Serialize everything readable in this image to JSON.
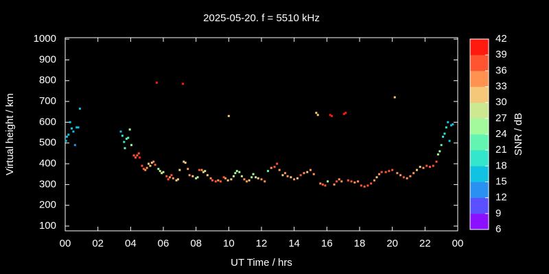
{
  "chart_data": {
    "type": "scatter",
    "title": "2025-05-20. f = 5510 kHz",
    "xlabel": "UT Time / hrs",
    "ylabel": "Virtual height / km",
    "colorbar_label": "SNR / dB",
    "xlim": [
      0,
      24
    ],
    "xticks": [
      {
        "value": 0,
        "label": "00"
      },
      {
        "value": 2,
        "label": "02"
      },
      {
        "value": 4,
        "label": "04"
      },
      {
        "value": 6,
        "label": "06"
      },
      {
        "value": 8,
        "label": "08"
      },
      10,
      12,
      14,
      16,
      18,
      20,
      22,
      {
        "value": 24,
        "label": "00"
      }
    ],
    "ylim": [
      77,
      1007
    ],
    "yticks": [
      100,
      200,
      300,
      400,
      500,
      600,
      700,
      800,
      900,
      1000
    ],
    "clim": [
      6,
      42
    ],
    "cticks": [
      6,
      9,
      12,
      15,
      18,
      21,
      24,
      27,
      30,
      33,
      36,
      39,
      42
    ],
    "colorscale": [
      "#8a10ff",
      "#5a50ff",
      "#2a90f2",
      "#12c2e2",
      "#34e6cc",
      "#62f4b0",
      "#a2fa9c",
      "#cce890",
      "#f4c878",
      "#ff9250",
      "#ff5430",
      "#ff1a10"
    ],
    "x": [
      0.05,
      0.1,
      0.2,
      0.3,
      0.4,
      0.5,
      0.6,
      0.7,
      0.8,
      0.9,
      3.4,
      3.5,
      3.6,
      3.65,
      3.75,
      3.85,
      3.95,
      4.05,
      4.2,
      4.3,
      4.4,
      4.5,
      4.55,
      4.7,
      4.8,
      4.9,
      5.0,
      5.1,
      5.2,
      5.3,
      5.4,
      5.5,
      5.6,
      5.7,
      5.8,
      5.9,
      6.0,
      6.2,
      6.3,
      6.4,
      6.5,
      6.6,
      6.8,
      6.9,
      7.0,
      7.2,
      7.25,
      7.35,
      7.5,
      7.6,
      7.8,
      8.0,
      8.1,
      8.2,
      8.35,
      8.45,
      8.55,
      8.7,
      8.9,
      9.0,
      9.2,
      9.35,
      9.5,
      9.7,
      9.8,
      9.95,
      10.0,
      10.15,
      10.3,
      10.4,
      10.5,
      10.65,
      10.8,
      10.95,
      11.1,
      11.25,
      11.4,
      11.5,
      11.65,
      11.8,
      12.0,
      12.2,
      12.4,
      12.6,
      12.8,
      12.95,
      13.1,
      13.3,
      13.45,
      13.6,
      13.8,
      14.0,
      14.2,
      14.4,
      14.6,
      14.8,
      15.0,
      15.2,
      15.35,
      15.45,
      15.6,
      15.75,
      15.9,
      16.05,
      16.2,
      16.3,
      16.45,
      16.6,
      16.75,
      16.9,
      17.05,
      17.15,
      17.3,
      17.5,
      17.7,
      17.9,
      18.1,
      18.3,
      18.5,
      18.7,
      18.9,
      19.05,
      19.2,
      19.35,
      19.6,
      19.8,
      20.0,
      20.15,
      20.3,
      20.5,
      20.7,
      20.9,
      21.1,
      21.3,
      21.5,
      21.7,
      21.9,
      22.1,
      22.3,
      22.5,
      22.7,
      22.8,
      22.9,
      23.0,
      23.1,
      23.2,
      23.3,
      23.4,
      23.5,
      23.6,
      23.7
    ],
    "values": [
      510,
      530,
      540,
      600,
      570,
      555,
      490,
      575,
      575,
      665,
      555,
      535,
      505,
      475,
      520,
      525,
      565,
      490,
      440,
      430,
      440,
      450,
      430,
      390,
      375,
      370,
      380,
      400,
      390,
      405,
      410,
      395,
      790,
      375,
      365,
      355,
      360,
      340,
      325,
      335,
      345,
      330,
      320,
      325,
      370,
      785,
      410,
      405,
      375,
      345,
      340,
      330,
      335,
      370,
      370,
      360,
      365,
      345,
      330,
      320,
      315,
      320,
      315,
      335,
      330,
      320,
      630,
      325,
      340,
      355,
      365,
      360,
      340,
      325,
      315,
      320,
      335,
      350,
      335,
      330,
      325,
      315,
      365,
      380,
      385,
      400,
      370,
      345,
      355,
      340,
      335,
      325,
      330,
      345,
      355,
      360,
      370,
      350,
      645,
      635,
      305,
      300,
      295,
      315,
      635,
      630,
      300,
      315,
      325,
      315,
      640,
      645,
      320,
      315,
      310,
      315,
      295,
      290,
      295,
      305,
      320,
      335,
      350,
      360,
      360,
      365,
      370,
      720,
      355,
      345,
      335,
      330,
      340,
      355,
      370,
      385,
      380,
      390,
      385,
      390,
      410,
      445,
      460,
      490,
      530,
      545,
      575,
      600,
      510,
      585,
      590
    ],
    "snr": [
      15,
      15,
      15,
      15,
      15,
      16,
      12,
      15,
      16,
      15,
      16,
      18,
      20,
      21,
      22,
      23,
      24,
      24,
      36,
      38,
      38,
      37,
      40,
      36,
      37,
      35,
      33,
      31,
      30,
      32,
      34,
      36,
      40,
      26,
      27,
      28,
      29,
      37,
      36,
      35,
      36,
      33,
      30,
      30,
      30,
      40,
      30,
      30,
      33,
      33,
      32,
      28,
      26,
      38,
      35,
      30,
      27,
      30,
      33,
      36,
      37,
      34,
      36,
      37,
      33,
      31,
      30,
      30,
      27,
      25,
      24,
      24,
      28,
      35,
      33,
      30,
      26,
      24,
      27,
      30,
      33,
      35,
      22,
      35,
      38,
      37,
      33,
      30,
      34,
      33,
      32,
      33,
      32,
      37,
      35,
      32,
      33,
      35,
      31,
      32,
      34,
      36,
      38,
      24,
      40,
      39,
      35,
      36,
      33,
      34,
      40,
      40,
      37,
      36,
      34,
      33,
      36,
      38,
      37,
      36,
      33,
      31,
      35,
      37,
      36,
      38,
      37,
      32,
      34,
      35,
      36,
      35,
      34,
      33,
      32,
      31,
      33,
      36,
      37,
      36,
      38,
      24,
      24,
      21,
      20,
      19,
      18,
      16,
      15,
      16,
      16
    ]
  }
}
